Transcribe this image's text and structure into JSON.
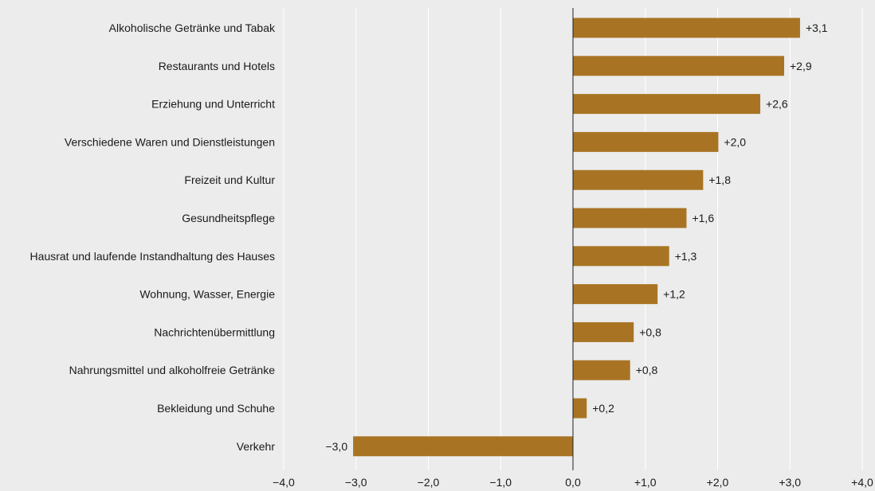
{
  "chart_data": {
    "type": "bar",
    "orientation": "horizontal",
    "categories": [
      "Alkoholische Getränke und Tabak",
      "Restaurants und Hotels",
      "Erziehung und Unterricht",
      "Verschiedene Waren und Dienstleistungen",
      "Freizeit und Kultur",
      "Gesundheitspflege",
      "Hausrat und laufende Instandhaltung des Hauses",
      "Wohnung, Wasser, Energie",
      "Nachrichtenübermittlung",
      "Nahrungsmittel und alkoholfreie Getränke",
      "Bekleidung und Schuhe",
      "Verkehr"
    ],
    "values": [
      3.14,
      2.92,
      2.59,
      2.01,
      1.8,
      1.57,
      1.33,
      1.17,
      0.84,
      0.79,
      0.19,
      -3.04
    ],
    "value_labels": [
      "+3,1",
      "+2,9",
      "+2,6",
      "+2,0",
      "+1,8",
      "+1,6",
      "+1,3",
      "+1,2",
      "+0,8",
      "+0,8",
      "+0,2",
      "−3,0"
    ],
    "xlim": [
      -4,
      4
    ],
    "xticks": [
      -4,
      -3,
      -2,
      -1,
      0,
      1,
      2,
      3,
      4
    ],
    "xtick_labels": [
      "−4,0",
      "−3,0",
      "−2,0",
      "−1,0",
      "0,0",
      "+1,0",
      "+2,0",
      "+3,0",
      "+4,0"
    ],
    "grid": "vertical",
    "bar_color": "#a87424",
    "background_color": "#ececec",
    "gridline_color": "#ffffff",
    "axis_color": "#222222"
  }
}
